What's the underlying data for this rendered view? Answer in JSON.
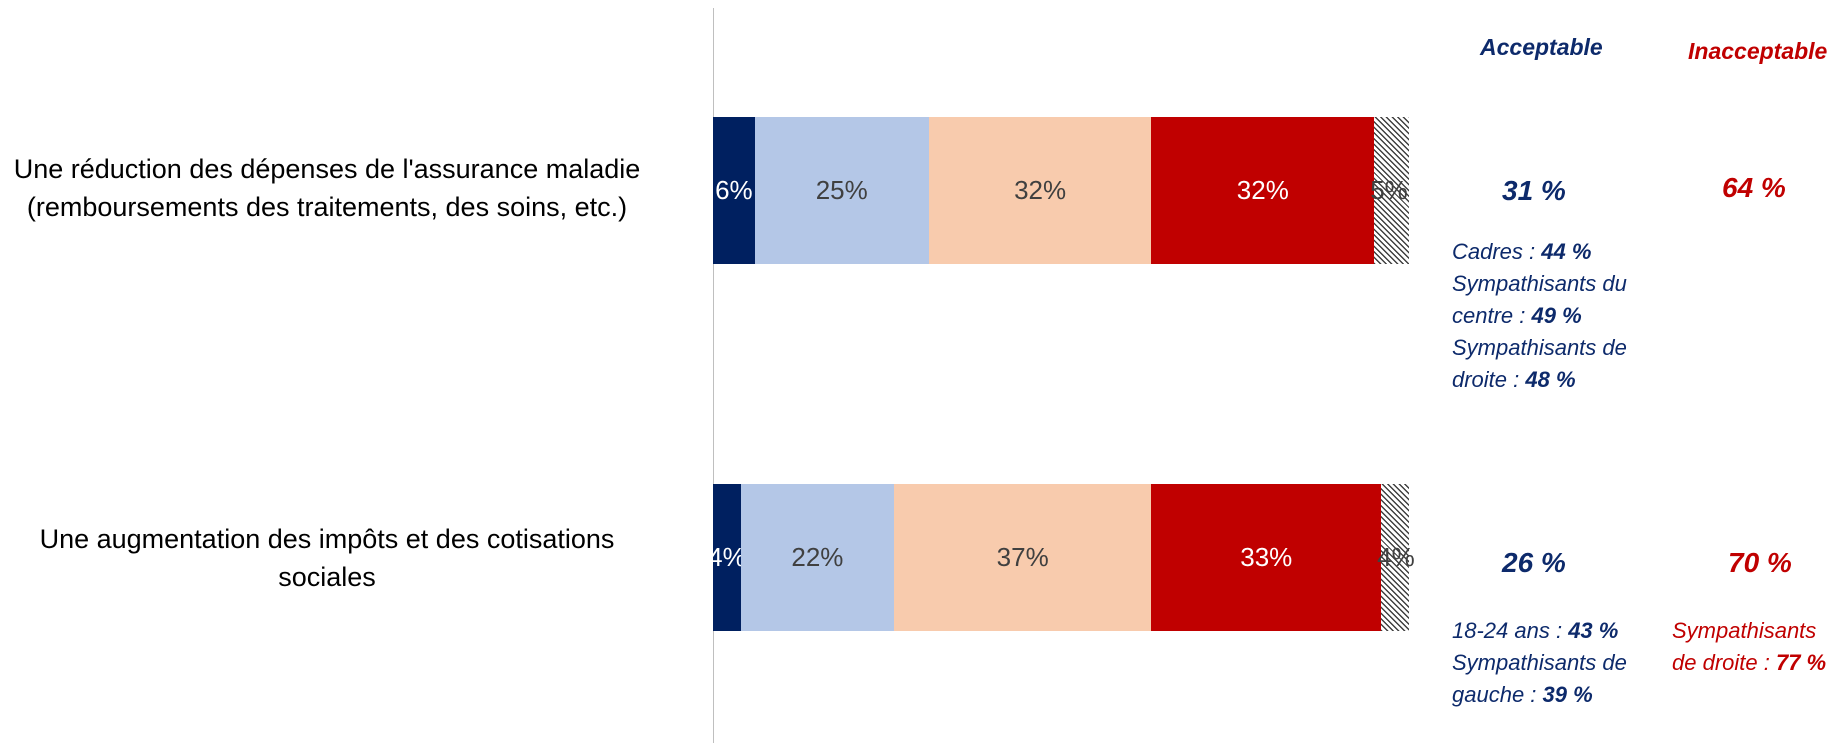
{
  "colors": {
    "tres_acceptable": "#002060",
    "plutot_acceptable": "#b4c7e7",
    "plutot_inacceptable": "#f8cbad",
    "tres_inacceptable": "#c00000",
    "nsp": "hatched"
  },
  "headers": {
    "acceptable": "Acceptable",
    "inacceptable": "Inacceptable"
  },
  "chart_data": {
    "type": "bar",
    "orientation": "horizontal",
    "stacked": true,
    "categories": [
      "Une réduction des dépenses de l'assurance maladie (remboursements des traitements, des soins, etc.)",
      "Une augmentation des impôts et des cotisations sociales"
    ],
    "series": [
      {
        "values": [
          6,
          4
        ],
        "labels": [
          "6%",
          "4%"
        ],
        "color": "#002060",
        "label_color": "#ffffff"
      },
      {
        "values": [
          25,
          22
        ],
        "labels": [
          "25%",
          "22%"
        ],
        "color": "#b4c7e7",
        "label_color": "#404040"
      },
      {
        "values": [
          32,
          37
        ],
        "labels": [
          "32%",
          "37%"
        ],
        "color": "#f8cbad",
        "label_color": "#404040"
      },
      {
        "values": [
          32,
          33
        ],
        "labels": [
          "32%",
          "33%"
        ],
        "color": "#c00000",
        "label_color": "#ffffff"
      },
      {
        "values": [
          5,
          4
        ],
        "labels": [
          "5%",
          "4%"
        ],
        "color": "hatched",
        "label_color": "#404040"
      }
    ],
    "xlim": [
      0,
      100
    ]
  },
  "rows": [
    {
      "label_lines": [
        "Une réduction des dépenses de l'assurance maladie",
        "(remboursements des traitements, des soins, etc.)"
      ],
      "acceptable": "31 %",
      "inacceptable": "64 %",
      "acceptable_details": [
        {
          "text": "Cadres : ",
          "value": "44 %"
        },
        {
          "text": "Sympathisants du",
          "value": ""
        },
        {
          "text": "centre : ",
          "value": "49 %"
        },
        {
          "text": "Sympathisants de",
          "value": ""
        },
        {
          "text": "droite : ",
          "value": "48 %"
        }
      ],
      "inacceptable_details": []
    },
    {
      "label_lines": [
        "Une augmentation des impôts et des cotisations",
        "sociales"
      ],
      "acceptable": "26 %",
      "inacceptable": "70 %",
      "acceptable_details": [
        {
          "text": "18-24 ans : ",
          "value": "43 %"
        },
        {
          "text": "Sympathisants de",
          "value": ""
        },
        {
          "text": "gauche : ",
          "value": "39 %"
        }
      ],
      "inacceptable_details": [
        {
          "text": "Sympathisants",
          "value": ""
        },
        {
          "text": "de droite : ",
          "value": "77 %"
        }
      ]
    }
  ]
}
